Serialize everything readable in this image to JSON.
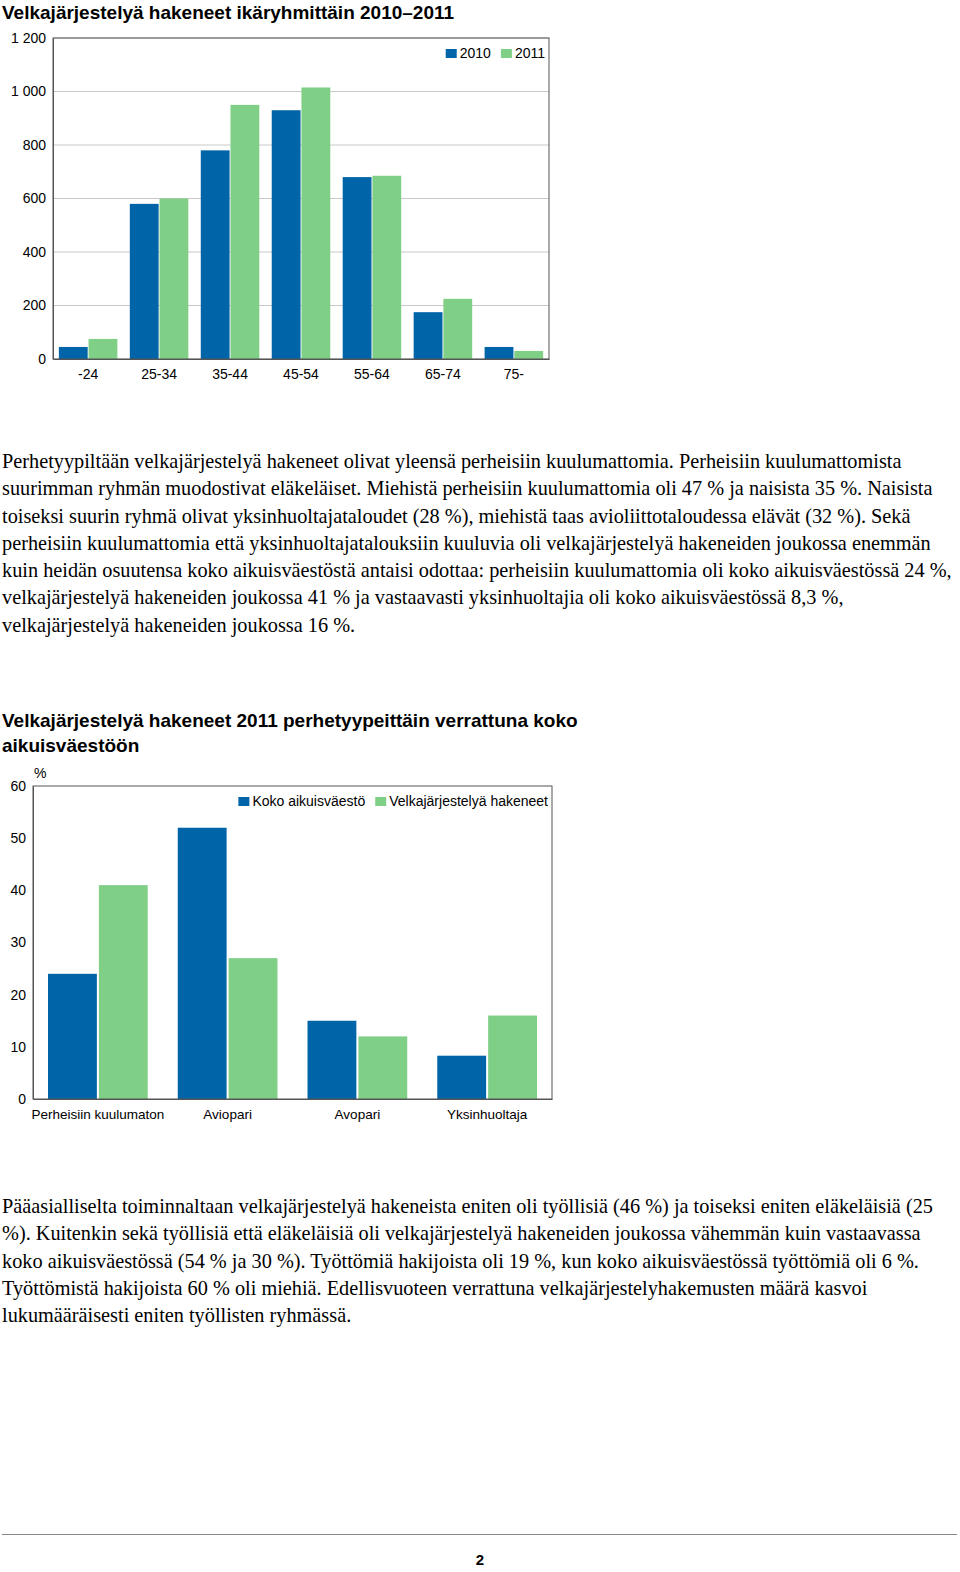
{
  "chart_data": [
    {
      "type": "bar",
      "title": "Velkajärjestelyä hakeneet ikäryhmittäin 2010–2011",
      "categories": [
        "-24",
        "25-34",
        "35-44",
        "45-54",
        "55-64",
        "65-74",
        "75-"
      ],
      "series": [
        {
          "name": "2010",
          "color": "#0064a8",
          "values": [
            45,
            580,
            780,
            930,
            680,
            175,
            45
          ]
        },
        {
          "name": "2011",
          "color": "#80cf87",
          "values": [
            75,
            600,
            950,
            1015,
            685,
            225,
            30
          ]
        }
      ],
      "ylim": [
        0,
        1200
      ],
      "yticks": [
        0,
        200,
        400,
        600,
        800,
        {
          "value": 1000,
          "label": "1 000"
        },
        {
          "value": 1200,
          "label": "1 200"
        }
      ],
      "grid": true,
      "legend": "top-right"
    },
    {
      "type": "bar",
      "title": "Velkajärjestelyä hakeneet 2011 perhetyypeittäin verrattuna koko aikuisväestöön",
      "ylabel": "%",
      "categories": [
        "Perheisiin kuulumaton",
        "Aviopari",
        "Avopari",
        "Yksinhuoltaja"
      ],
      "series": [
        {
          "name": "Koko aikuisväestö",
          "color": "#0064a8",
          "values": [
            24,
            52,
            15,
            8.3
          ]
        },
        {
          "name": "Velkajärjestelyä hakeneet",
          "color": "#80cf87",
          "values": [
            41,
            27,
            12,
            16
          ]
        }
      ],
      "ylim": [
        0,
        60
      ],
      "yticks": [
        0,
        10,
        20,
        30,
        40,
        50,
        60
      ],
      "grid": false,
      "legend": "top-right"
    }
  ],
  "paragraphs": [
    "Perhetyypiltään velkajärjestelyä hakeneet olivat yleensä perheisiin kuulumattomia. Perheisiin kuulumattomista suurimman ryhmän muodostivat eläkeläiset. Miehistä perheisiin kuulumattomia oli 47 % ja naisista 35 %. Naisista toiseksi suurin ryhmä olivat yksinhuoltajataloudet (28 %), miehistä taas avioliittotaloudessa elävät (32 %). Sekä perheisiin kuulumattomia että yksinhuoltajatalouksiin kuuluvia oli velkajärjestelyä hakeneiden joukossa enemmän kuin heidän osuutensa koko aikuisväestöstä antaisi odottaa: perheisiin kuulumattomia oli koko aikuisväestössä 24 %, velkajärjestelyä hakeneiden joukossa 41 % ja vastaavasti yksinhuoltajia oli koko aikuisväestössä 8,3 %, velkajärjestelyä hakeneiden joukossa 16 %.",
    "Pääasialliselta toiminnaltaan velkajärjestelyä hakeneista eniten oli työllisiä (46 %) ja toiseksi eniten eläkeläisiä (25 %). Kuitenkin sekä työllisiä että eläkeläisiä oli velkajärjestelyä hakeneiden joukossa vähemmän kuin vastaavassa koko aikuisväestössä (54 % ja 30 %). Työttömiä hakijoista oli 19 %, kun koko aikuisväestössä työttömiä oli 6 %. Työttömistä hakijoista 60 % oli miehiä. Edellisvuoteen verrattuna velkajärjestelyhakemusten määrä kasvoi lukumääräisesti eniten työllisten ryhmässä."
  ],
  "page_number": 2
}
